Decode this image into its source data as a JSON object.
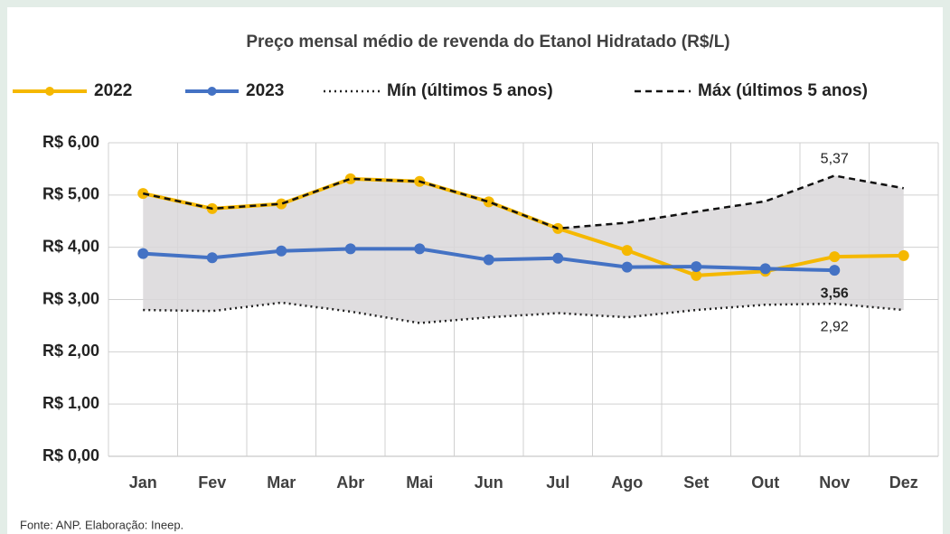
{
  "chart_data": {
    "type": "line",
    "title": "Preço mensal médio de revenda do Etanol Hidratado (R$/L)",
    "categories": [
      "Jan",
      "Fev",
      "Mar",
      "Abr",
      "Mai",
      "Jun",
      "Jul",
      "Ago",
      "Set",
      "Out",
      "Nov",
      "Dez"
    ],
    "series": [
      {
        "name": "2022",
        "color": "#f5b800",
        "line_style": "solid",
        "marker": true,
        "values": [
          5.03,
          4.74,
          4.83,
          5.31,
          5.26,
          4.87,
          4.36,
          3.94,
          3.46,
          3.54,
          3.82,
          3.84
        ]
      },
      {
        "name": "2023",
        "color": "#4472c4",
        "line_style": "solid",
        "marker": true,
        "values": [
          3.88,
          3.8,
          3.93,
          3.97,
          3.97,
          3.76,
          3.79,
          3.62,
          3.63,
          3.59,
          3.56,
          null
        ],
        "value_labels": [
          null,
          null,
          null,
          null,
          null,
          null,
          null,
          null,
          null,
          null,
          "3,56",
          null
        ]
      },
      {
        "name": "Mín (últimos 5 anos)",
        "color": "#222222",
        "line_style": "dotted",
        "marker": false,
        "values": [
          2.8,
          2.78,
          2.94,
          2.77,
          2.55,
          2.66,
          2.74,
          2.66,
          2.8,
          2.9,
          2.92,
          2.8
        ],
        "value_labels": [
          null,
          null,
          null,
          null,
          null,
          null,
          null,
          null,
          null,
          null,
          "2,92",
          null
        ]
      },
      {
        "name": "Máx (últimos 5 anos)",
        "color": "#111111",
        "line_style": "dashed",
        "marker": false,
        "values": [
          5.03,
          4.74,
          4.83,
          5.31,
          5.26,
          4.87,
          4.36,
          4.47,
          4.68,
          4.88,
          5.37,
          5.13
        ],
        "value_labels": [
          null,
          null,
          null,
          null,
          null,
          null,
          null,
          null,
          null,
          null,
          "5,37",
          null
        ]
      }
    ],
    "band_fill": "#d9d7d9",
    "ylim": [
      0,
      6
    ],
    "yticks": [
      {
        "value": 0,
        "label": "R$ 0,00"
      },
      {
        "value": 1,
        "label": "R$ 1,00"
      },
      {
        "value": 2,
        "label": "R$ 2,00"
      },
      {
        "value": 3,
        "label": "R$ 3,00"
      },
      {
        "value": 4,
        "label": "R$ 4,00"
      },
      {
        "value": 5,
        "label": "R$ 5,00"
      },
      {
        "value": 6,
        "label": "R$ 6,00"
      }
    ],
    "grid": true,
    "legend": "top",
    "source": "Fonte: ANP. Elaboração: Ineep."
  }
}
